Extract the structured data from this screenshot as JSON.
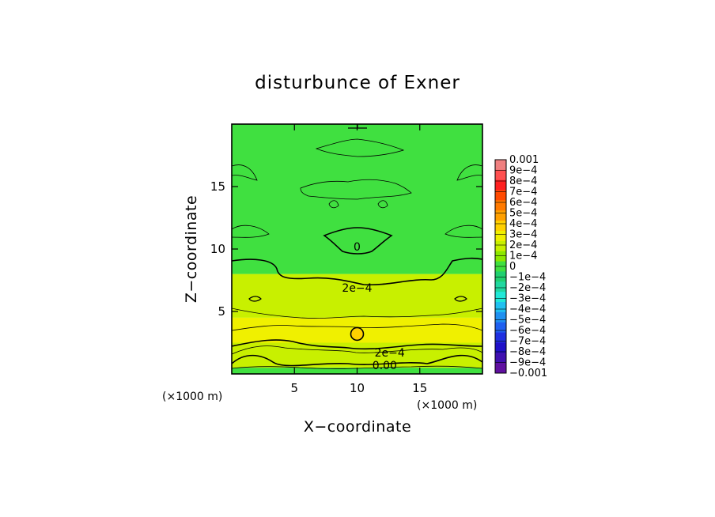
{
  "chart_data": {
    "type": "heatmap",
    "title": "disturbunce of Exner",
    "xlabel": "X−coordinate",
    "ylabel": "Z−coordinate",
    "x_unit": "(×1000 m)",
    "y_unit": "(×1000 m)",
    "xlim": [
      0,
      20
    ],
    "ylim": [
      0,
      20
    ],
    "x_ticks": [
      5,
      10,
      15
    ],
    "y_ticks": [
      5,
      10,
      15
    ],
    "x_tick_labels": [
      "5",
      "10",
      "15"
    ],
    "y_tick_labels": [
      "5",
      "10",
      "15"
    ],
    "colorbar": {
      "min": -0.001,
      "max": 0.001,
      "levels": [
        0.001,
        0.0009,
        0.0008,
        0.0007,
        0.0006,
        0.0005,
        0.0004,
        0.0003,
        0.0002,
        0.0001,
        0,
        -0.0001,
        -0.0002,
        -0.0003,
        -0.0004,
        -0.0005,
        -0.0006,
        -0.0007,
        -0.0008,
        -0.0009,
        -0.001
      ],
      "labels": [
        "0.001",
        "9e−4",
        "8e−4",
        "7e−4",
        "6e−4",
        "5e−4",
        "4e−4",
        "3e−4",
        "2e−4",
        "1e−4",
        "0",
        "−1e−4",
        "−2e−4",
        "−3e−4",
        "−4e−4",
        "−5e−4",
        "−6e−4",
        "−7e−4",
        "−8e−4",
        "−9e−4",
        "−0.001"
      ],
      "colors": [
        "#f08080",
        "#ff5050",
        "#ff2020",
        "#ff4a00",
        "#ff7a00",
        "#ffa000",
        "#ffd000",
        "#f0f000",
        "#c8f000",
        "#8ce800",
        "#40e040",
        "#20d070",
        "#20d8a0",
        "#20e8d8",
        "#20c0f0",
        "#2090f0",
        "#2060f0",
        "#2030e0",
        "#2010c8",
        "#4010b0",
        "#6010a0"
      ]
    },
    "field_bands": [
      {
        "z_range": [
          0,
          0.5
        ],
        "value_approx": -5e-05,
        "note": "near-surface band"
      },
      {
        "z_range": [
          0.5,
          2.5
        ],
        "value_approx": 0.00025
      },
      {
        "z_range": [
          2.5,
          4.5
        ],
        "value_approx": 0.00028
      },
      {
        "z_range": [
          4.5,
          8
        ],
        "value_approx": 0.00018
      },
      {
        "z_range": [
          8,
          20
        ],
        "value_approx": 5e-05
      }
    ],
    "contour_labels": [
      {
        "text": "0",
        "x": 10,
        "z": 10.2
      },
      {
        "text": "2e−4",
        "x": 10,
        "z": 6.9
      },
      {
        "text": "2e−4",
        "x": 12.6,
        "z": 1.7
      },
      {
        "text": "0.00",
        "x": 12.2,
        "z": 0.7
      }
    ],
    "features": [
      {
        "name": "local maximum circle",
        "x": 10,
        "z": 3.2
      }
    ]
  }
}
